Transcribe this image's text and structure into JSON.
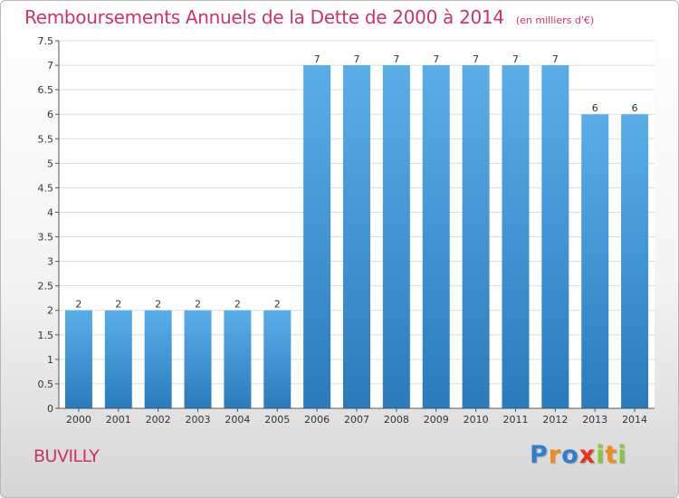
{
  "title": "Remboursements Annuels de la Dette de 2000 à 2014",
  "unit_note": "(en milliers d'€)",
  "place": "BUVILLY",
  "logo": {
    "letters": [
      {
        "ch": "P",
        "color": "#2f7fd1"
      },
      {
        "ch": "r",
        "color": "#f08a1c"
      },
      {
        "ch": "o",
        "color": "#2f7fd1"
      },
      {
        "ch": "x",
        "color": "#e8331f"
      },
      {
        "ch": "i",
        "color": "#8bc53f"
      },
      {
        "ch": "t",
        "color": "#f08a1c"
      },
      {
        "ch": "i",
        "color": "#8bc53f"
      }
    ]
  },
  "colors": {
    "title": "#cc3366",
    "bar_top": "#5aaee8",
    "bar_bottom": "#2a7bbd",
    "grid": "#dddddd",
    "axis": "#555555"
  },
  "chart_data": {
    "type": "bar",
    "categories": [
      "2000",
      "2001",
      "2002",
      "2003",
      "2004",
      "2005",
      "2006",
      "2007",
      "2008",
      "2009",
      "2010",
      "2011",
      "2012",
      "2013",
      "2014"
    ],
    "values": [
      2,
      2,
      2,
      2,
      2,
      2,
      7,
      7,
      7,
      7,
      7,
      7,
      7,
      6,
      6
    ],
    "labels": [
      "2",
      "2",
      "2",
      "2",
      "2",
      "2",
      "7",
      "7",
      "7",
      "7",
      "7",
      "7",
      "7",
      "6",
      "6"
    ],
    "ylim": [
      0,
      7.5
    ],
    "yticks": [
      0,
      0.5,
      1,
      1.5,
      2,
      2.5,
      3,
      3.5,
      4,
      4.5,
      5,
      5.5,
      6,
      6.5,
      7,
      7.5
    ],
    "ytick_labels": [
      "0",
      "0.5",
      "1",
      "1.5",
      "2",
      "2.5",
      "3",
      "3.5",
      "4",
      "4.5",
      "5",
      "5.5",
      "6",
      "6.5",
      "7",
      "7.5"
    ],
    "grid": true
  }
}
